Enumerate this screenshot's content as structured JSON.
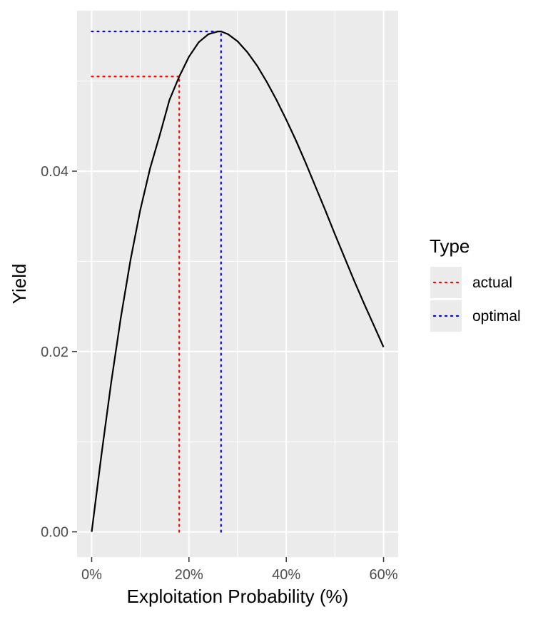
{
  "chart_data": {
    "type": "line",
    "xlabel": "Exploitation Probability (%)",
    "ylabel": "Yield",
    "x_ticks": [
      "0%",
      "20%",
      "40%",
      "60%"
    ],
    "x_tick_values": [
      0,
      20,
      40,
      60
    ],
    "y_ticks": [
      "0.00",
      "0.02",
      "0.04"
    ],
    "y_tick_values": [
      0,
      0.02,
      0.04
    ],
    "xlim": [
      -3,
      63
    ],
    "ylim": [
      -0.0028,
      0.0578
    ],
    "grid": true,
    "curve": {
      "color": "#000000",
      "x": [
        0,
        2,
        4,
        6,
        8,
        10,
        12,
        14,
        16,
        18,
        20,
        22,
        24,
        26,
        26.6,
        28,
        30,
        32,
        34,
        36,
        38,
        40,
        42,
        44,
        46,
        48,
        50,
        52,
        54,
        56,
        58,
        60
      ],
      "y": [
        0,
        0.0085,
        0.0165,
        0.0238,
        0.0302,
        0.0357,
        0.0403,
        0.044,
        0.0479,
        0.0505,
        0.0527,
        0.0543,
        0.0552,
        0.0555,
        0.0555,
        0.0552,
        0.0544,
        0.0532,
        0.0517,
        0.0499,
        0.0479,
        0.0457,
        0.0434,
        0.0409,
        0.0383,
        0.0357,
        0.033,
        0.0304,
        0.0278,
        0.0253,
        0.0229,
        0.0205
      ]
    },
    "reference_lines": [
      {
        "name": "actual",
        "color": "#ff0000",
        "x": 18,
        "y": 0.0505
      },
      {
        "name": "optimal",
        "color": "#0000ff",
        "x": 26.6,
        "y": 0.0555
      }
    ],
    "legend": {
      "title": "Type",
      "position": "right",
      "entries": [
        {
          "label": "actual",
          "color": "#ff0000"
        },
        {
          "label": "optimal",
          "color": "#0000ff"
        }
      ]
    },
    "colors": {
      "panel_background": "#ebebeb",
      "grid": "#ffffff"
    }
  }
}
